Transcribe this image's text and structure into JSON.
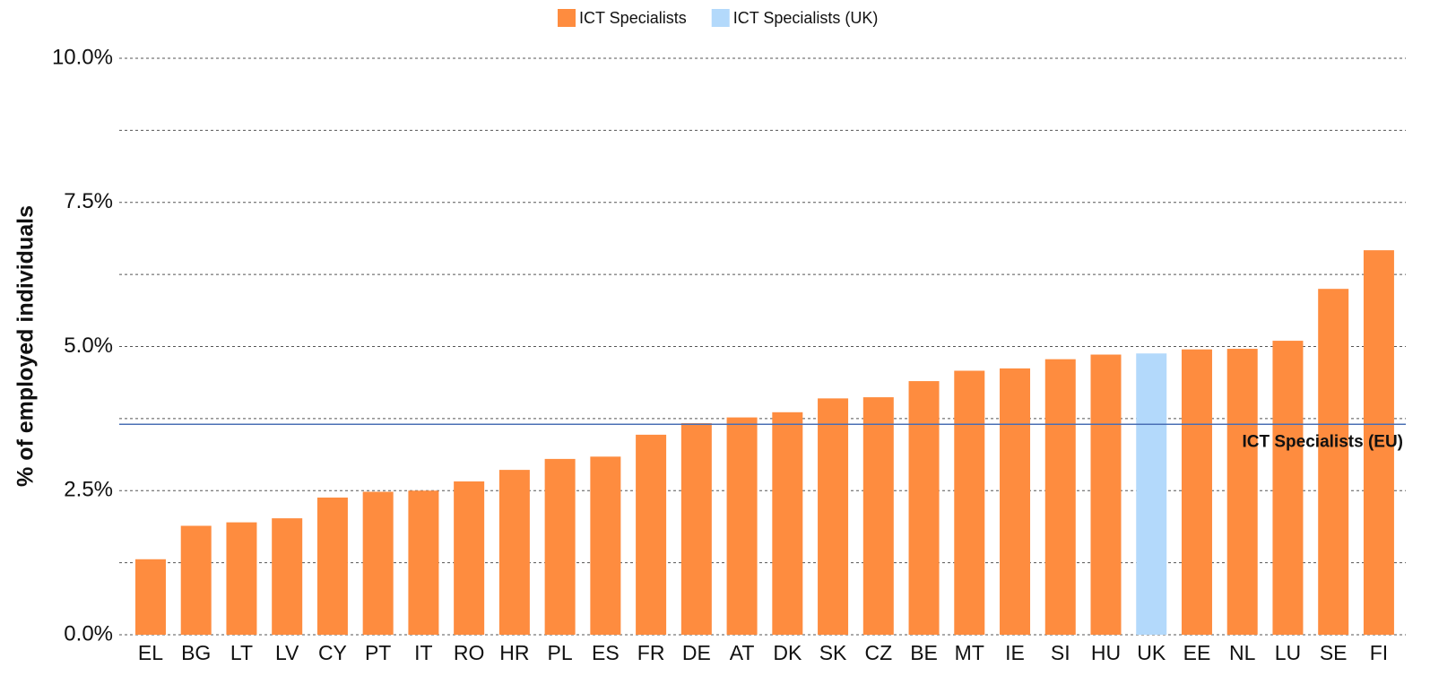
{
  "chart_data": {
    "type": "bar",
    "y_label": "% of employed individuals",
    "categories": [
      "EL",
      "BG",
      "LT",
      "LV",
      "CY",
      "PT",
      "IT",
      "RO",
      "HR",
      "PL",
      "ES",
      "FR",
      "DE",
      "AT",
      "DK",
      "SK",
      "CZ",
      "BE",
      "MT",
      "IE",
      "SI",
      "HU",
      "UK",
      "EE",
      "NL",
      "LU",
      "SE",
      "FI"
    ],
    "series": [
      {
        "name": "ICT Specialists",
        "color": "#fe8c3f",
        "values": [
          1.31,
          1.89,
          1.95,
          2.02,
          2.38,
          2.48,
          2.5,
          2.66,
          2.86,
          3.05,
          3.09,
          3.47,
          3.67,
          3.77,
          3.86,
          4.1,
          4.12,
          4.4,
          4.58,
          4.62,
          4.78,
          4.86,
          null,
          4.95,
          4.96,
          5.1,
          6.0,
          6.67
        ]
      },
      {
        "name": "ICT Specialists (UK)",
        "color": "#b3d9fb",
        "values": [
          null,
          null,
          null,
          null,
          null,
          null,
          null,
          null,
          null,
          null,
          null,
          null,
          null,
          null,
          null,
          null,
          null,
          null,
          null,
          null,
          null,
          null,
          4.88,
          null,
          null,
          null,
          null,
          null
        ]
      }
    ],
    "reference_line": {
      "label": "ICT Specialists (EU)",
      "value": 3.65,
      "color": "#4a6fb5"
    },
    "ylim": [
      0,
      10
    ],
    "yticks": [
      {
        "value": 0,
        "label": "0.0%"
      },
      {
        "value": 2.5,
        "label": "2.5%"
      },
      {
        "value": 5,
        "label": "5.0%"
      },
      {
        "value": 7.5,
        "label": "7.5%"
      },
      {
        "value": 10,
        "label": "10.0%"
      }
    ],
    "minor_yticks": [
      1.25,
      3.75,
      6.25,
      8.75
    ],
    "grid": true,
    "legend": "top"
  }
}
